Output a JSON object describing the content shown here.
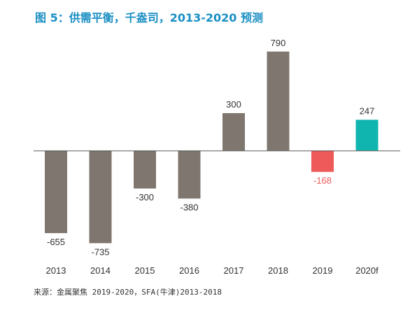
{
  "title": "图 5：供需平衡，千盎司，2013-2020 预测",
  "source": "来源：金属聚焦 2019-2020，SFA(牛津)2013-2018",
  "colors": {
    "actual": "#7f776f",
    "deficit_2019": "#ee5a5a",
    "forecast": "#10b5b0",
    "label_default": "#333333",
    "label_2019": "#ee5a5a",
    "axis": "#555555",
    "title": "#1a8fc4"
  },
  "chart_data": {
    "type": "bar",
    "categories": [
      "2013",
      "2014",
      "2015",
      "2016",
      "2017",
      "2018",
      "2019",
      "2020f"
    ],
    "values": [
      -655,
      -735,
      -300,
      -380,
      300,
      790,
      -168,
      247
    ],
    "value_labels": [
      "-655",
      "-735",
      "-300",
      "-380",
      "300",
      "790",
      "-168",
      "247"
    ],
    "title": "图 5：供需平衡，千盎司，2013-2020 预测",
    "xlabel": "",
    "ylabel": "",
    "ylim": [
      -800,
      900
    ],
    "grid": false,
    "legend": "none"
  }
}
